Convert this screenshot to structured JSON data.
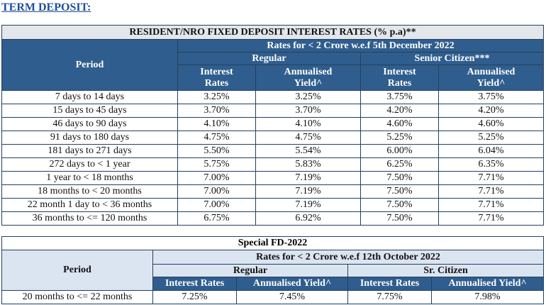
{
  "heading": "TERM DEPOSIT:",
  "table1": {
    "title": "RESIDENT/NRO FIXED DEPOSIT INTEREST RATES (% p.a)**",
    "period_header": "Period",
    "rates_header": "Rates for < 2 Crore w.e.f 5th December 2022",
    "groups": [
      "Regular",
      "Senior Citizen***"
    ],
    "subheaders": [
      "Interest Rates",
      "Annualised Yield^",
      "Interest Rates",
      "Annualised Yield^"
    ],
    "rows": [
      [
        "7 days to 14 days",
        "3.25%",
        "3.25%",
        "3.75%",
        "3.75%"
      ],
      [
        "15 days to 45 days",
        "3.70%",
        "3.70%",
        "4.20%",
        "4.20%"
      ],
      [
        "46 days to 90 days",
        "4.10%",
        "4.10%",
        "4.60%",
        "4.60%"
      ],
      [
        "91 days to 180 days",
        "4.75%",
        "4.75%",
        "5.25%",
        "5.25%"
      ],
      [
        "181 days to 271 days",
        "5.50%",
        "5.54%",
        "6.00%",
        "6.04%"
      ],
      [
        "272 days to < 1 year",
        "5.75%",
        "5.83%",
        "6.25%",
        "6.35%"
      ],
      [
        "1 year to < 18 months",
        "7.00%",
        "7.19%",
        "7.50%",
        "7.71%"
      ],
      [
        "18 months to < 20 months",
        "7.00%",
        "7.19%",
        "7.50%",
        "7.71%"
      ],
      [
        "22 month 1 day to < 36 months",
        "7.00%",
        "7.19%",
        "7.50%",
        "7.71%"
      ],
      [
        "36 months to <= 120 months",
        "6.75%",
        "6.92%",
        "7.50%",
        "7.71%"
      ]
    ]
  },
  "table2": {
    "title": "Special FD-2022",
    "period_header": "Period",
    "rates_header": "Rates for < 2 Crore w.e.f 12th October 2022",
    "groups": [
      "Regular",
      "Sr. Citizen"
    ],
    "subheaders": [
      "Interest Rates",
      "Annualised Yield^",
      "Interest Rates",
      "Annualised Yield^"
    ],
    "rows": [
      [
        "20 months to <= 22 months",
        "7.25%",
        "7.45%",
        "7.75%",
        "7.98%"
      ]
    ]
  }
}
